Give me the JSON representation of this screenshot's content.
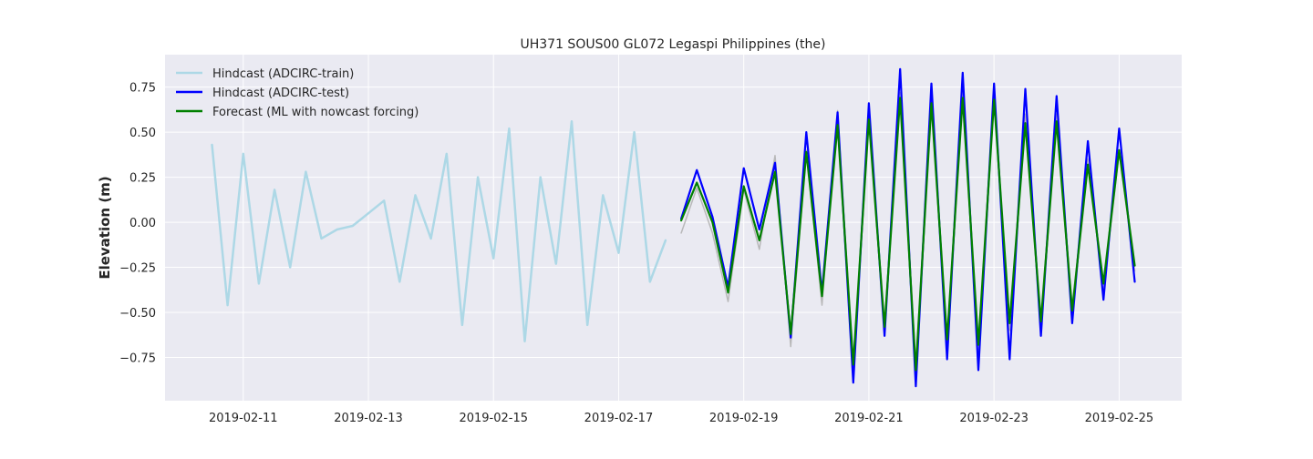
{
  "chart_data": {
    "type": "line",
    "title": "UH371 SOUS00 GL072 Legaspi Philippines (the)",
    "xlabel": "",
    "ylabel": "Elevation (m)",
    "x_unit": "date",
    "xlim": [
      "2019-02-09T18:00",
      "2019-02-26T00:00"
    ],
    "ylim": [
      -0.99,
      0.93
    ],
    "grid": true,
    "legend_position": "top-left",
    "x_ticks": [
      "2019-02-11",
      "2019-02-13",
      "2019-02-15",
      "2019-02-17",
      "2019-02-19",
      "2019-02-21",
      "2019-02-23",
      "2019-02-25"
    ],
    "y_ticks": [
      -0.75,
      -0.5,
      -0.25,
      0.0,
      0.25,
      0.5,
      0.75
    ],
    "y_tick_labels": [
      "−0.75",
      "−0.50",
      "−0.25",
      "0.00",
      "0.25",
      "0.50",
      "0.75"
    ],
    "series": [
      {
        "name": "Hindcast (ADCIRC-train)",
        "color": "#add8e6",
        "x": [
          "2019-02-10T12:00",
          "2019-02-10T18:00",
          "2019-02-11T00:00",
          "2019-02-11T06:00",
          "2019-02-11T12:00",
          "2019-02-11T18:00",
          "2019-02-12T00:00",
          "2019-02-12T06:00",
          "2019-02-12T12:00",
          "2019-02-12T18:00",
          "2019-02-13T00:00",
          "2019-02-13T06:00",
          "2019-02-13T12:00",
          "2019-02-13T18:00",
          "2019-02-14T00:00",
          "2019-02-14T06:00",
          "2019-02-14T12:00",
          "2019-02-14T18:00",
          "2019-02-15T00:00",
          "2019-02-15T06:00",
          "2019-02-15T12:00",
          "2019-02-15T18:00",
          "2019-02-16T00:00",
          "2019-02-16T06:00",
          "2019-02-16T12:00",
          "2019-02-16T18:00",
          "2019-02-17T00:00",
          "2019-02-17T06:00",
          "2019-02-17T12:00",
          "2019-02-17T18:00"
        ],
        "values": [
          0.43,
          -0.46,
          0.38,
          -0.34,
          0.18,
          -0.25,
          0.28,
          -0.09,
          -0.04,
          -0.02,
          0.05,
          0.12,
          -0.33,
          0.15,
          -0.09,
          0.38,
          -0.57,
          0.25,
          -0.2,
          0.52,
          -0.66,
          0.25,
          -0.23,
          0.56,
          -0.57,
          0.15,
          -0.17,
          0.5,
          -0.33,
          -0.1
        ]
      },
      {
        "name": "Hindcast (ADCIRC-test)",
        "color": "#0000ff",
        "x": [
          "2019-02-18T00:00",
          "2019-02-18T06:00",
          "2019-02-18T12:00",
          "2019-02-18T18:00",
          "2019-02-19T00:00",
          "2019-02-19T06:00",
          "2019-02-19T12:00",
          "2019-02-19T18:00",
          "2019-02-20T00:00",
          "2019-02-20T06:00",
          "2019-02-20T12:00",
          "2019-02-20T18:00",
          "2019-02-21T00:00",
          "2019-02-21T06:00",
          "2019-02-21T12:00",
          "2019-02-21T18:00",
          "2019-02-22T00:00",
          "2019-02-22T06:00",
          "2019-02-22T12:00",
          "2019-02-22T18:00",
          "2019-02-23T00:00",
          "2019-02-23T06:00",
          "2019-02-23T12:00",
          "2019-02-23T18:00",
          "2019-02-24T00:00",
          "2019-02-24T06:00",
          "2019-02-24T12:00",
          "2019-02-24T18:00",
          "2019-02-25T00:00",
          "2019-02-25T06:00"
        ],
        "values": [
          0.02,
          0.29,
          0.03,
          -0.36,
          0.3,
          -0.04,
          0.33,
          -0.64,
          0.5,
          -0.39,
          0.61,
          -0.89,
          0.66,
          -0.63,
          0.85,
          -0.91,
          0.77,
          -0.76,
          0.83,
          -0.82,
          0.77,
          -0.76,
          0.74,
          -0.63,
          0.7,
          -0.56,
          0.45,
          -0.43,
          0.52,
          -0.33
        ]
      },
      {
        "name": "Forecast (ML with nowcast forcing)",
        "color": "#008000",
        "x": [
          "2019-02-18T00:00",
          "2019-02-18T06:00",
          "2019-02-18T12:00",
          "2019-02-18T18:00",
          "2019-02-19T00:00",
          "2019-02-19T06:00",
          "2019-02-19T12:00",
          "2019-02-19T18:00",
          "2019-02-20T00:00",
          "2019-02-20T06:00",
          "2019-02-20T12:00",
          "2019-02-20T18:00",
          "2019-02-21T00:00",
          "2019-02-21T06:00",
          "2019-02-21T12:00",
          "2019-02-21T18:00",
          "2019-02-22T00:00",
          "2019-02-22T06:00",
          "2019-02-22T12:00",
          "2019-02-22T18:00",
          "2019-02-23T00:00",
          "2019-02-23T06:00",
          "2019-02-23T12:00",
          "2019-02-23T18:00",
          "2019-02-24T00:00",
          "2019-02-24T06:00",
          "2019-02-24T12:00",
          "2019-02-24T18:00",
          "2019-02-25T00:00",
          "2019-02-25T06:00"
        ],
        "values": [
          0.01,
          0.22,
          0.0,
          -0.39,
          0.2,
          -0.1,
          0.28,
          -0.62,
          0.39,
          -0.41,
          0.54,
          -0.79,
          0.57,
          -0.58,
          0.69,
          -0.82,
          0.66,
          -0.65,
          0.69,
          -0.68,
          0.68,
          -0.56,
          0.55,
          -0.55,
          0.56,
          -0.49,
          0.32,
          -0.34,
          0.4,
          -0.24
        ]
      },
      {
        "color": "#b3b3b3",
        "x": [
          "2019-02-18T00:00",
          "2019-02-18T06:00",
          "2019-02-18T12:00",
          "2019-02-18T18:00",
          "2019-02-19T00:00",
          "2019-02-19T06:00",
          "2019-02-19T12:00",
          "2019-02-19T18:00",
          "2019-02-20T00:00",
          "2019-02-20T06:00",
          "2019-02-20T12:00",
          "2019-02-20T18:00",
          "2019-02-21T00:00",
          "2019-02-21T06:00",
          "2019-02-21T12:00",
          "2019-02-21T18:00",
          "2019-02-22T00:00",
          "2019-02-22T06:00",
          "2019-02-22T12:00",
          "2019-02-22T18:00",
          "2019-02-23T00:00",
          "2019-02-23T06:00",
          "2019-02-23T12:00",
          "2019-02-23T18:00",
          "2019-02-24T00:00",
          "2019-02-24T06:00",
          "2019-02-24T12:00",
          "2019-02-24T18:00",
          "2019-02-25T00:00",
          "2019-02-25T06:00"
        ],
        "values": [
          -0.06,
          0.19,
          -0.06,
          -0.44,
          0.18,
          -0.15,
          0.37,
          -0.69,
          0.4,
          -0.46,
          0.62,
          -0.8,
          0.57,
          -0.6,
          0.72,
          -0.79,
          0.72,
          -0.67,
          0.75,
          -0.72,
          0.72,
          -0.6,
          0.6,
          -0.58,
          0.6,
          -0.47,
          0.35,
          -0.38,
          0.39,
          -0.27
        ]
      }
    ]
  }
}
